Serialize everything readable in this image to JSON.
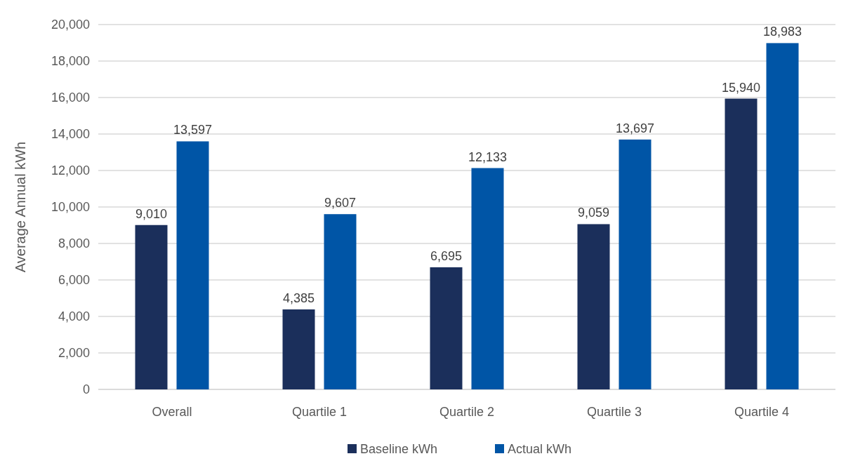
{
  "chart_data": {
    "type": "bar",
    "ylabel": "Average Annual kWh",
    "categories": [
      "Overall",
      "Quartile 1",
      "Quartile 2",
      "Quartile 3",
      "Quartile 4"
    ],
    "series": [
      {
        "name": "Baseline kWh",
        "color": "#1b2f5b",
        "values": [
          9010,
          4385,
          6695,
          9059,
          15940
        ],
        "value_labels": [
          "9,010",
          "4,385",
          "6,695",
          "9,059",
          "15,940"
        ]
      },
      {
        "name": "Actual kWh",
        "color": "#0055a6",
        "values": [
          13597,
          9607,
          12133,
          13697,
          18983
        ],
        "value_labels": [
          "13,597",
          "9,607",
          "12,133",
          "13,697",
          "18,983"
        ]
      }
    ],
    "ylim": [
      0,
      20000
    ],
    "yticks": [
      {
        "value": 0,
        "label": "0"
      },
      {
        "value": 2000,
        "label": "2,000"
      },
      {
        "value": 4000,
        "label": "4,000"
      },
      {
        "value": 6000,
        "label": "6,000"
      },
      {
        "value": 8000,
        "label": "8,000"
      },
      {
        "value": 10000,
        "label": "10,000"
      },
      {
        "value": 12000,
        "label": "12,000"
      },
      {
        "value": 14000,
        "label": "14,000"
      },
      {
        "value": 16000,
        "label": "16,000"
      },
      {
        "value": 18000,
        "label": "18,000"
      },
      {
        "value": 20000,
        "label": "20,000"
      }
    ],
    "grid": "y",
    "legend": "bottom"
  }
}
